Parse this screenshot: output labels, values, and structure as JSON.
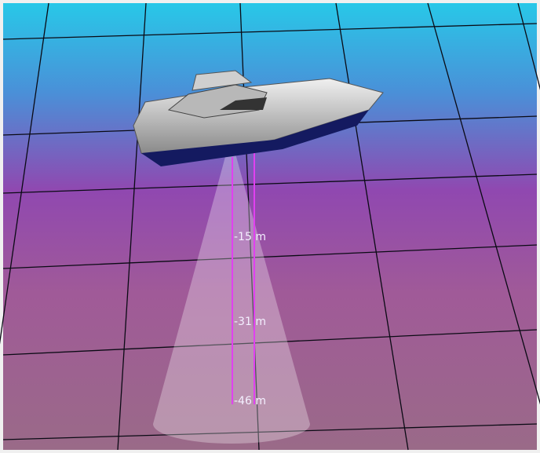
{
  "depth_labels": [
    "-15 m",
    "-31 m",
    "-46 m"
  ]
}
